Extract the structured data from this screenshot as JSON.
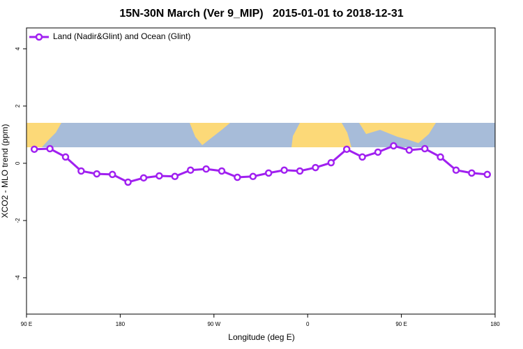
{
  "chart_data": {
    "type": "line",
    "title": "15N-30N March (Ver 9_MIP)   2015-01-01 to 2018-12-31",
    "x_label": "Longitude (deg E)",
    "y_label": "XCO2 - MLO trend (ppm)",
    "x": [
      97.5,
      112.5,
      127.5,
      142.5,
      157.5,
      172.5,
      187.5,
      202.5,
      217.5,
      232.5,
      247.5,
      262.5,
      277.5,
      292.5,
      307.5,
      322.5,
      337.5,
      352.5,
      367.5,
      382.5,
      397.5,
      412.5,
      427.5,
      442.5,
      457.5,
      472.5,
      487.5,
      502.5,
      517.5,
      532.5
    ],
    "series": [
      {
        "name": "Land (Nadir&Glint) and Ocean (Glint)",
        "color": "#a020f0",
        "values": [
          0.49,
          0.51,
          0.22,
          -0.27,
          -0.37,
          -0.39,
          -0.66,
          -0.51,
          -0.44,
          -0.46,
          -0.24,
          -0.2,
          -0.27,
          -0.49,
          -0.46,
          -0.34,
          -0.24,
          -0.27,
          -0.15,
          0.02,
          0.49,
          0.22,
          0.39,
          0.61,
          0.46,
          0.51,
          0.22,
          -0.24,
          -0.34,
          -0.39
        ]
      }
    ],
    "xlim": [
      90,
      540
    ],
    "xticks": [
      {
        "value": 90,
        "label": "90 E"
      },
      180,
      {
        "value": 270,
        "label": "90 W"
      },
      {
        "value": 360,
        "label": "0"
      },
      {
        "value": 450,
        "label": "90 E"
      },
      {
        "value": 540,
        "label": "180"
      }
    ],
    "ylim": [
      -5.27,
      4.73
    ],
    "yticks": [
      4,
      2,
      0,
      -2,
      -4
    ],
    "legend": "top-left"
  }
}
